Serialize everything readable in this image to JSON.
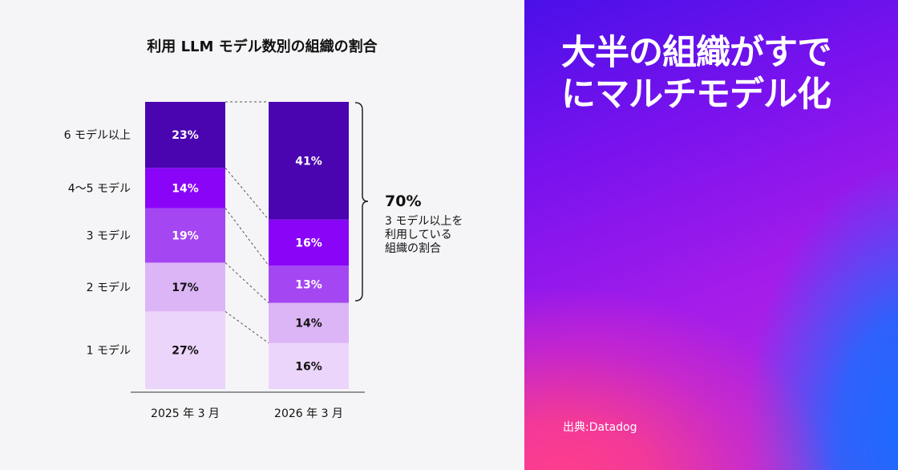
{
  "chart_data": {
    "type": "bar",
    "stacked": true,
    "title": "利用 LLM モデル数別の組織の割合",
    "categories": [
      "2025 年 3 月",
      "2026 年 3 月"
    ],
    "series": [
      {
        "name": "1 モデル",
        "values": [
          27,
          16
        ],
        "color": "#ecd5fb",
        "label_color": "#111111"
      },
      {
        "name": "2 モデル",
        "values": [
          17,
          14
        ],
        "color": "#dcb5f6",
        "label_color": "#111111"
      },
      {
        "name": "3 モデル",
        "values": [
          19,
          13
        ],
        "color": "#a447f2",
        "label_color": "#ffffff"
      },
      {
        "name": "4〜5 モデル",
        "values": [
          14,
          16
        ],
        "color": "#8a05f8",
        "label_color": "#ffffff"
      },
      {
        "name": "6 モデル以上",
        "values": [
          23,
          41
        ],
        "color": "#4a05b0",
        "label_color": "#ffffff"
      }
    ],
    "ylim": [
      0,
      100
    ],
    "annotation": {
      "value": "70%",
      "lines": [
        "3 モデル以上を",
        "利用している",
        "組織の割合"
      ]
    }
  },
  "panel": {
    "headline_line1": "大半の組織がすで",
    "headline_line2": "にマルチモデル化",
    "source": "出典:Datadog"
  }
}
